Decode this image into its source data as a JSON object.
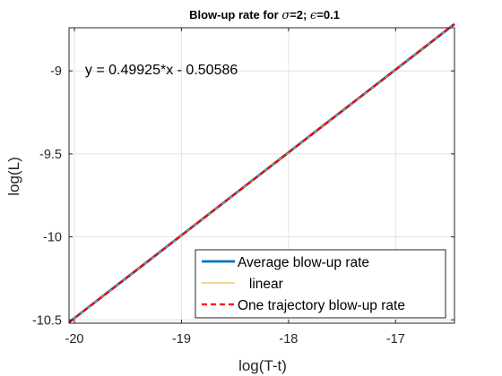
{
  "chart_data": {
    "type": "line",
    "title_parts": [
      "Blow-up rate for ",
      "σ",
      "=2; ",
      "ϵ",
      "=0.1"
    ],
    "xlabel": "log(T-t)",
    "ylabel": "log(L)",
    "xlim": [
      -20.05,
      -16.45
    ],
    "ylim": [
      -10.52,
      -8.74
    ],
    "xticks": [
      -20,
      -19,
      -18,
      -17
    ],
    "xtick_labels": [
      "-20",
      "-19",
      "-18",
      "-17"
    ],
    "yticks": [
      -10.5,
      -10,
      -9.5,
      -9
    ],
    "ytick_labels": [
      "-10.5",
      "-10",
      "-9.5",
      "-9"
    ],
    "grid": true,
    "legend_placement": "bottom-right",
    "annotation": {
      "text": "y = 0.49925*x - 0.50586",
      "x": -19.9,
      "y": -9.02
    },
    "series": [
      {
        "name": "Average blow-up rate",
        "color": "#0072BD",
        "style": "solid",
        "width": 2.8,
        "x": [
          -20.05,
          -16.45
        ],
        "y": [
          -10.5149,
          -8.7176
        ]
      },
      {
        "name": "linear",
        "color": "#EDB120",
        "style": "solid",
        "width": 1,
        "x": [
          -20.05,
          -16.45
        ],
        "y": [
          -10.5159,
          -8.7186
        ]
      },
      {
        "name": "One trajectory blow-up rate",
        "color": "#FF0000",
        "style": "dashed",
        "width": 2.2,
        "x": [
          -20.05,
          -16.45
        ],
        "y": [
          -10.5149,
          -8.7176
        ]
      }
    ]
  }
}
